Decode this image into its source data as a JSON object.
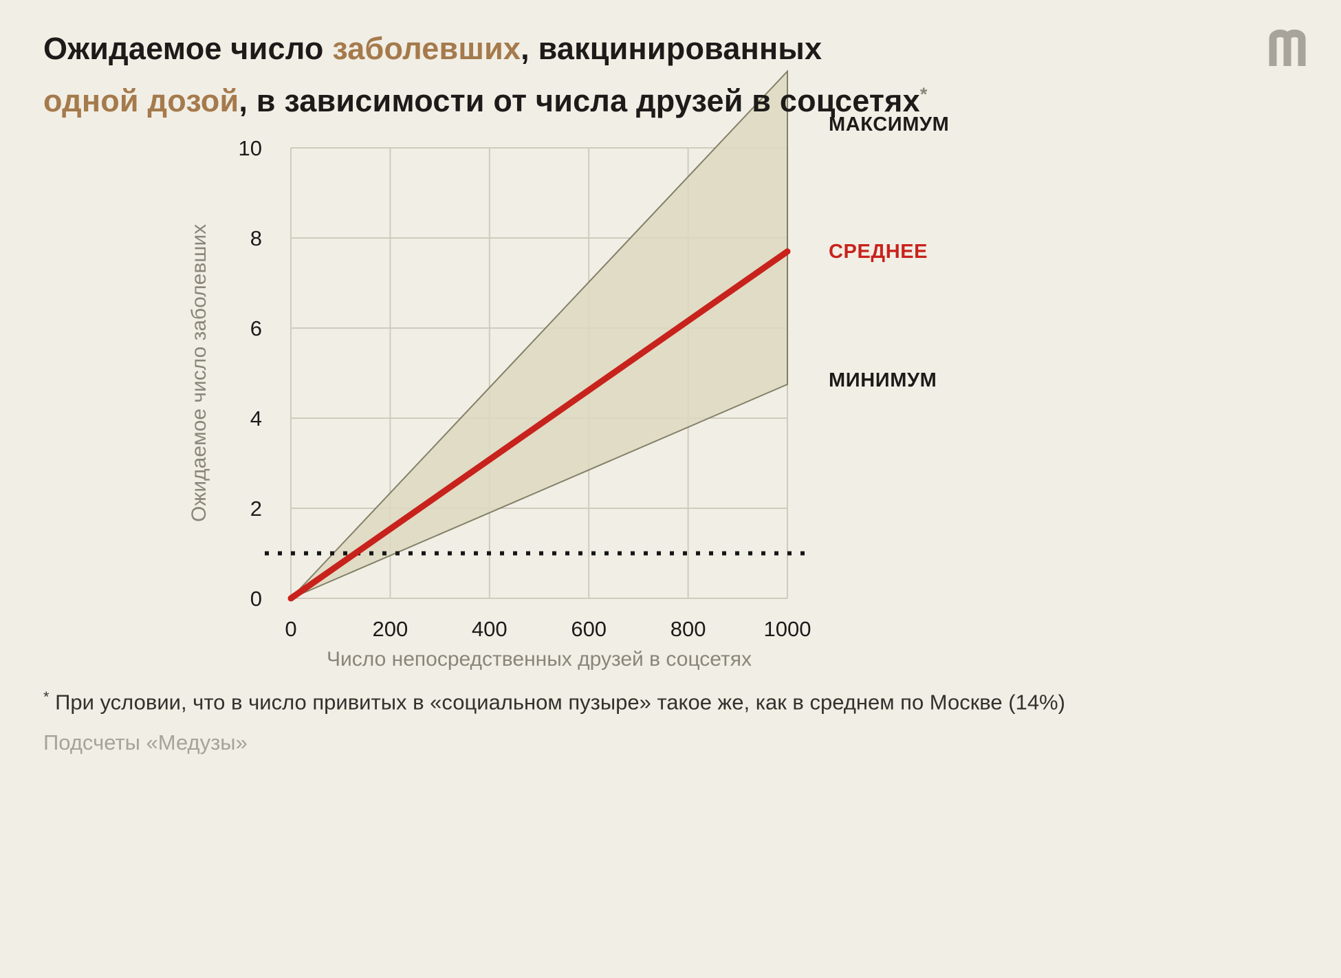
{
  "header": {
    "title_line1_part1": "Ожидаемое число ",
    "title_line1_accent": "заболевших",
    "title_line1_part2": ", вакцинированных",
    "title_line2_accent": "одной дозой",
    "title_line2_part2": ", в зависимости от числа друзей в соцсетях",
    "title_footnote_marker": "*"
  },
  "chart_data": {
    "type": "line",
    "title": "Ожидаемое число заболевших, вакцинированных одной дозой, в зависимости от числа друзей в соцсетях",
    "xlabel": "Число непосредственных друзей в соцсетях",
    "ylabel": "Ожидаемое число заболевших",
    "xlim": [
      0,
      1000
    ],
    "ylim": [
      0,
      10
    ],
    "x_ticks": [
      0,
      200,
      400,
      600,
      800,
      1000
    ],
    "y_ticks": [
      0,
      2,
      4,
      6,
      8,
      10
    ],
    "grid": true,
    "legend_position": "right",
    "series": [
      {
        "name": "МАКСИМУМ",
        "role": "band-upper",
        "x": [
          0,
          1000
        ],
        "values": [
          0,
          11.7
        ],
        "color": "#716e55"
      },
      {
        "name": "СРЕДНЕЕ",
        "role": "average-line",
        "x": [
          0,
          1000
        ],
        "values": [
          0,
          7.7
        ],
        "color": "#c8221c"
      },
      {
        "name": "МИНИМУМ",
        "role": "band-lower",
        "x": [
          0,
          1000
        ],
        "values": [
          0,
          4.75
        ],
        "color": "#716e55"
      }
    ],
    "band_fill": "#ddd8c1",
    "reference_line": {
      "y": 1,
      "style": "dotted",
      "color": "#161616"
    }
  },
  "footnote": {
    "marker": "*",
    "text": " При условии, что в число привитых в «социальном пузыре» такое же, как в среднем по Москве (14%)"
  },
  "source": {
    "text": "Подсчеты «Медузы»"
  },
  "colors": {
    "background": "#f1eee5",
    "accent_brown": "#a57a4c",
    "red": "#c8221c",
    "grid": "#cfcbbd",
    "text_dark": "#1c1b19",
    "text_gray": "#8b8579",
    "source_gray": "#a7a29a",
    "band_stroke": "#716e55",
    "logo_gray": "#a9a49b"
  }
}
